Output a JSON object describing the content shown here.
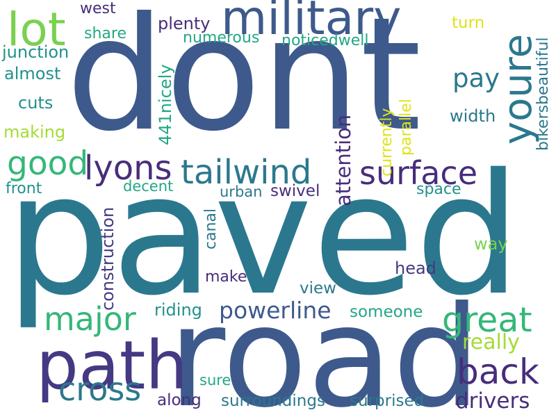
{
  "colors": {
    "background": "#ffffff",
    "palette": [
      "#3e5a8c",
      "#2b788e",
      "#472d7b",
      "#443983",
      "#21918c",
      "#22a785",
      "#35b779",
      "#7ad151",
      "#a5db36",
      "#dde318"
    ]
  },
  "words": [
    {
      "text": "dont",
      "color": "#3e5a8c"
    },
    {
      "text": "paved",
      "color": "#2b788e"
    },
    {
      "text": "road",
      "color": "#3e5a8c"
    },
    {
      "text": "military",
      "color": "#3e5a8c"
    },
    {
      "text": "lot",
      "color": "#7ad151"
    },
    {
      "text": "youre",
      "color": "#2b788e"
    },
    {
      "text": "path",
      "color": "#443983"
    },
    {
      "text": "tailwind",
      "color": "#2b788e"
    },
    {
      "text": "surface",
      "color": "#472d7b"
    },
    {
      "text": "lyons",
      "color": "#472d7b"
    },
    {
      "text": "good",
      "color": "#35b779"
    },
    {
      "text": "great",
      "color": "#35b779"
    },
    {
      "text": "major",
      "color": "#35b779"
    },
    {
      "text": "cross",
      "color": "#2b788e"
    },
    {
      "text": "back",
      "color": "#472d7b"
    },
    {
      "text": "powerline",
      "color": "#3e5a8c"
    },
    {
      "text": "drivers",
      "color": "#472d7b"
    },
    {
      "text": "attention",
      "color": "#472d7b"
    },
    {
      "text": "pay",
      "color": "#2b788e"
    },
    {
      "text": "really",
      "color": "#a5db36"
    },
    {
      "text": "surroundings",
      "color": "#2b788e"
    },
    {
      "text": "surprised",
      "color": "#2b788e"
    },
    {
      "text": "along",
      "color": "#472d7b"
    },
    {
      "text": "someone",
      "color": "#22a785"
    },
    {
      "text": "riding",
      "color": "#21918c"
    },
    {
      "text": "construction",
      "color": "#443983"
    },
    {
      "text": "view",
      "color": "#2b788e"
    },
    {
      "text": "make",
      "color": "#472d7b"
    },
    {
      "text": "head",
      "color": "#443983"
    },
    {
      "text": "way",
      "color": "#7ad151"
    },
    {
      "text": "space",
      "color": "#21918c"
    },
    {
      "text": "urban",
      "color": "#2b788e"
    },
    {
      "text": "swivel",
      "color": "#472d7b"
    },
    {
      "text": "decent",
      "color": "#22a785"
    },
    {
      "text": "front",
      "color": "#21918c"
    },
    {
      "text": "making",
      "color": "#a5db36"
    },
    {
      "text": "cuts",
      "color": "#21918c"
    },
    {
      "text": "almost",
      "color": "#21918c"
    },
    {
      "text": "junction",
      "color": "#21918c"
    },
    {
      "text": "share",
      "color": "#22a785"
    },
    {
      "text": "west",
      "color": "#472d7b"
    },
    {
      "text": "plenty",
      "color": "#472d7b"
    },
    {
      "text": "numerous",
      "color": "#22a785"
    },
    {
      "text": "noticedwell",
      "color": "#22a785"
    },
    {
      "text": "turn",
      "color": "#dde318"
    },
    {
      "text": "width",
      "color": "#2b788e"
    },
    {
      "text": "441nicely",
      "color": "#22a785"
    },
    {
      "text": "currently",
      "color": "#dde318"
    },
    {
      "text": "parallel",
      "color": "#dde318"
    },
    {
      "text": "bikersbeautiful",
      "color": "#2b788e"
    },
    {
      "text": "canal",
      "color": "#2b788e"
    },
    {
      "text": "sure",
      "color": "#22a785"
    }
  ]
}
